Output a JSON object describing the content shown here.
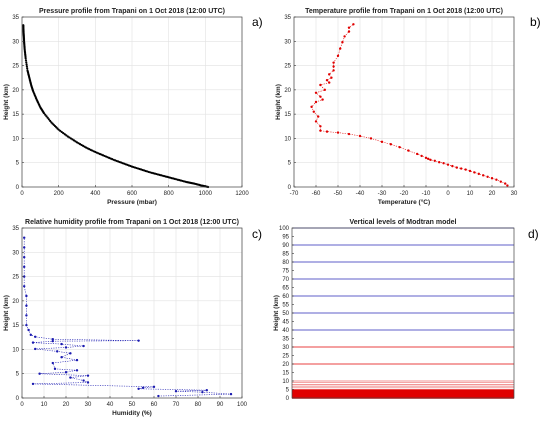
{
  "chart_data": [
    {
      "id": "pressure",
      "panel_label": "a)",
      "type": "scatter",
      "title": "Pressure profile from Trapani on 1 Oct 2018 (12:00 UTC)",
      "xlabel": "Pressure (mbar)",
      "ylabel": "Height (km)",
      "xlim": [
        0,
        1200
      ],
      "ylim": [
        0,
        35
      ],
      "xticks": [
        0,
        200,
        400,
        600,
        800,
        1000,
        1200
      ],
      "yticks": [
        0,
        5,
        10,
        15,
        20,
        25,
        30,
        35
      ],
      "grid": true,
      "color": "#000000",
      "marker": "dot-dense",
      "series": [
        {
          "x": [
            1015,
            980,
            940,
            900,
            850,
            800,
            750,
            700,
            650,
            600,
            550,
            500,
            450,
            400,
            350,
            300,
            250,
            200,
            160,
            120,
            100,
            80,
            60,
            50,
            40,
            30,
            20,
            15,
            12,
            10,
            8,
            7
          ],
          "y": [
            0,
            0.3,
            0.7,
            1.0,
            1.5,
            2.0,
            2.5,
            3.0,
            3.6,
            4.2,
            4.9,
            5.6,
            6.4,
            7.2,
            8.1,
            9.2,
            10.4,
            11.8,
            13.3,
            15.2,
            16.4,
            18.0,
            19.8,
            21.0,
            22.5,
            24.0,
            26.5,
            28.2,
            29.6,
            31.0,
            32.2,
            33.3
          ]
        }
      ]
    },
    {
      "id": "temperature",
      "panel_label": "b)",
      "type": "line",
      "title": "Temperature profile from Trapani on 1 Oct 2018 (12:00 UTC)",
      "xlabel": "Temperature (°C)",
      "ylabel": "Height (km)",
      "xlim": [
        -70,
        30
      ],
      "ylim": [
        0,
        35
      ],
      "xticks": [
        -70,
        -60,
        -50,
        -40,
        -30,
        -20,
        -10,
        0,
        10,
        20,
        30
      ],
      "yticks": [
        0,
        5,
        10,
        15,
        20,
        25,
        30,
        35
      ],
      "grid": true,
      "color": "#e00000",
      "series": [
        {
          "x": [
            27,
            26,
            24,
            22,
            20,
            18,
            16,
            14,
            12,
            10,
            8,
            6,
            4,
            2,
            0,
            -2,
            -4,
            -6,
            -8,
            -9,
            -10,
            -12,
            -14,
            -18,
            -22,
            -26,
            -30,
            -35,
            -40,
            -45,
            -50,
            -55,
            -58,
            -58,
            -60,
            -59,
            -61,
            -62,
            -60,
            -57,
            -58,
            -60,
            -56,
            -58,
            -54,
            -55,
            -53,
            -54,
            -52,
            -52,
            -52,
            -50,
            -49,
            -48,
            -47,
            -45,
            -45,
            -43
          ],
          "y": [
            0.3,
            0.7,
            1.1,
            1.5,
            1.8,
            2.1,
            2.4,
            2.7,
            3.0,
            3.3,
            3.6,
            3.8,
            4.0,
            4.3,
            4.6,
            4.9,
            5.1,
            5.4,
            5.6,
            5.8,
            6.0,
            6.4,
            6.8,
            7.5,
            8.2,
            8.8,
            9.3,
            10.0,
            10.5,
            10.9,
            11.2,
            11.4,
            11.6,
            12.5,
            13.5,
            14.5,
            15.5,
            16.5,
            17.5,
            18.0,
            18.6,
            19.4,
            20.0,
            21.0,
            21.5,
            22.0,
            22.5,
            23.2,
            24.0,
            24.8,
            25.6,
            27.0,
            28.5,
            29.8,
            31.0,
            32.0,
            32.8,
            33.5
          ]
        }
      ]
    },
    {
      "id": "humidity",
      "panel_label": "c)",
      "type": "line",
      "title": "Relative humidity profile from Trapani on 1 Oct 2018 (12:00 UTC)",
      "xlabel": "Humidity (%)",
      "ylabel": "Height (km)",
      "xlim": [
        0,
        100
      ],
      "ylim": [
        0,
        35
      ],
      "xticks": [
        0,
        10,
        20,
        30,
        40,
        50,
        60,
        70,
        80,
        90,
        100
      ],
      "yticks": [
        0,
        5,
        10,
        15,
        20,
        25,
        30,
        35
      ],
      "grid": true,
      "color": "#1a1ab0",
      "series": [
        {
          "x": [
            62,
            95,
            82,
            70,
            84,
            53,
            55,
            60,
            5,
            30,
            28,
            22,
            30,
            8,
            20,
            25,
            15,
            14,
            25,
            18,
            22,
            16,
            6,
            20,
            28,
            18,
            5,
            14,
            53,
            14,
            6,
            4,
            3,
            2,
            2,
            2,
            2,
            1,
            1,
            1,
            1,
            1,
            1
          ],
          "y": [
            0.4,
            0.8,
            1.2,
            1.4,
            1.6,
            1.9,
            2.1,
            2.3,
            2.9,
            3.2,
            3.6,
            4.2,
            4.6,
            5.0,
            5.3,
            5.7,
            6.0,
            7.2,
            7.8,
            8.4,
            9.2,
            9.6,
            10.1,
            10.4,
            10.7,
            11.1,
            11.4,
            11.7,
            11.8,
            12.1,
            12.6,
            13.0,
            14.0,
            15.0,
            17.0,
            19.0,
            21.0,
            23.0,
            25.0,
            27.0,
            29.0,
            31.0,
            33.0
          ]
        }
      ]
    },
    {
      "id": "modtran",
      "panel_label": "d)",
      "type": "bar",
      "title": "Vertical levels of Modtran model",
      "xlabel": "",
      "ylabel": "Height (km)",
      "ylim": [
        0,
        100
      ],
      "yticks": [
        0,
        5,
        10,
        15,
        20,
        25,
        30,
        35,
        40,
        45,
        50,
        55,
        60,
        65,
        70,
        75,
        80,
        85,
        90,
        95,
        100
      ],
      "grid": false,
      "red_levels": [
        0,
        0.5,
        1,
        1.5,
        2,
        2.5,
        3,
        3.5,
        4,
        4.5,
        5,
        6,
        7,
        8,
        9,
        10,
        20,
        30
      ],
      "blue_levels": [
        40,
        50,
        60,
        70,
        80,
        90,
        100
      ],
      "red_color": "#e00000",
      "blue_color": "#2a2ab8"
    }
  ]
}
